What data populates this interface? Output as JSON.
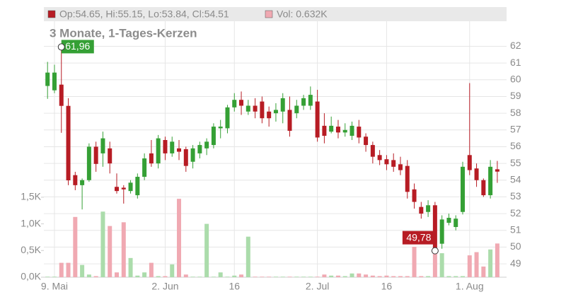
{
  "chart_data": {
    "type": "candlestick",
    "title": "3 Monate, 1-Tages-Kerzen",
    "ohlc_label": "Op:54.65, Hi:55.15, Lo:53.84, Cl:54.51",
    "vol_label": "Vol: 0.632K",
    "categories": [
      null,
      "9. Mai",
      null,
      null,
      null,
      null,
      null,
      null,
      null,
      null,
      null,
      null,
      null,
      null,
      null,
      null,
      null,
      "2. Jun",
      null,
      null,
      null,
      null,
      null,
      null,
      null,
      null,
      null,
      "16",
      null,
      null,
      null,
      null,
      null,
      null,
      null,
      null,
      null,
      null,
      null,
      "2. Jul",
      null,
      null,
      null,
      null,
      null,
      null,
      null,
      null,
      null,
      "16",
      null,
      null,
      null,
      null,
      null,
      null,
      null,
      null,
      null,
      null,
      null,
      "1. Aug",
      null,
      null,
      null,
      null
    ],
    "open": [
      59.63,
      59.37,
      59.71,
      58.44,
      54.3,
      53.7,
      54.0,
      56.0,
      55.6,
      55.9,
      53.6,
      53.55,
      53.35,
      53.1,
      54.2,
      55.6,
      55.0,
      56.4,
      55.6,
      55.9,
      55.85,
      55.1,
      55.6,
      55.9,
      56.1,
      57.1,
      57.1,
      58.35,
      58.8,
      58.1,
      58.45,
      58.7,
      58.1,
      58.0,
      58.1,
      58.2,
      58.0,
      58.45,
      58.45,
      58.7,
      57.25,
      56.9,
      57.2,
      56.85,
      56.65,
      57.2,
      56.6,
      56.1,
      55.5,
      55.25,
      55.2,
      54.95,
      54.85,
      53.45,
      52.4,
      52.1,
      52.5,
      50.2,
      51.45,
      51.2,
      52.1,
      55.5,
      54.7,
      54.0,
      53.1,
      54.65
    ],
    "high": [
      61.07,
      60.9,
      61.96,
      58.9,
      54.5,
      54.1,
      56.2,
      56.3,
      56.9,
      56.3,
      54.4,
      53.7,
      54.0,
      54.4,
      55.6,
      56.4,
      56.7,
      56.6,
      56.6,
      56.4,
      56.0,
      56.1,
      56.3,
      56.5,
      57.4,
      57.6,
      58.5,
      59.2,
      59.3,
      58.8,
      58.9,
      59.0,
      58.4,
      58.6,
      59.2,
      59.0,
      58.8,
      59.1,
      59.6,
      59.4,
      58.0,
      57.8,
      57.6,
      57.4,
      57.5,
      57.6,
      56.8,
      56.3,
      55.8,
      55.5,
      55.6,
      55.4,
      55.2,
      53.8,
      52.7,
      52.8,
      52.7,
      51.9,
      52.0,
      51.9,
      55.1,
      59.8,
      55.0,
      54.1,
      55.2,
      55.15
    ],
    "low": [
      58.86,
      59.2,
      56.83,
      53.7,
      53.4,
      52.25,
      53.9,
      54.5,
      54.8,
      54.4,
      53.2,
      52.6,
      53.2,
      52.9,
      54.0,
      54.8,
      54.7,
      55.2,
      55.4,
      55.2,
      54.5,
      54.7,
      55.3,
      55.5,
      55.9,
      56.5,
      56.8,
      58.1,
      57.9,
      57.9,
      57.7,
      57.4,
      57.2,
      57.5,
      57.4,
      56.6,
      57.7,
      58.2,
      58.2,
      56.3,
      56.2,
      56.8,
      56.5,
      56.6,
      56.4,
      56.2,
      55.7,
      55.0,
      54.9,
      54.6,
      54.5,
      54.3,
      52.9,
      52.3,
      51.7,
      51.8,
      49.78,
      49.9,
      51.3,
      51.0,
      51.95,
      54.3,
      53.6,
      53.0,
      52.9,
      53.84
    ],
    "close": [
      60.43,
      60.43,
      58.44,
      53.99,
      53.7,
      54.0,
      56.0,
      54.97,
      56.5,
      55.0,
      53.35,
      53.45,
      53.85,
      54.2,
      55.3,
      55.0,
      56.5,
      55.6,
      56.3,
      55.7,
      54.85,
      55.9,
      56.1,
      56.3,
      57.2,
      57.2,
      58.35,
      58.8,
      58.45,
      58.45,
      58.1,
      57.7,
      57.7,
      58.2,
      58.9,
      56.95,
      58.45,
      58.9,
      59.1,
      56.55,
      56.65,
      57.25,
      56.85,
      57.0,
      57.25,
      56.55,
      56.1,
      55.4,
      55.2,
      54.95,
      54.8,
      54.6,
      53.3,
      52.7,
      52.0,
      52.5,
      49.95,
      51.65,
      51.75,
      51.7,
      54.8,
      54.6,
      54.0,
      53.1,
      54.8,
      54.51
    ],
    "volume": [
      0.01,
      0.01,
      0.27,
      0.27,
      1.13,
      0.23,
      0.05,
      0.02,
      1.23,
      0.96,
      0.09,
      1.03,
      0.36,
      0.03,
      0.09,
      0.27,
      0.02,
      0.02,
      0.24,
      1.47,
      0.05,
      0.01,
      0.01,
      1.0,
      0.01,
      0.09,
      0.01,
      0.03,
      0.05,
      0.76,
      0.01,
      0.01,
      0.01,
      0.01,
      0.01,
      0.01,
      0.01,
      0.01,
      0.01,
      0.01,
      0.05,
      0.03,
      0.03,
      0.02,
      0.07,
      0.07,
      0.05,
      0.03,
      0.02,
      0.03,
      0.02,
      0.02,
      0.02,
      0.57,
      0.02,
      0.02,
      0.52,
      0.45,
      0.02,
      0.02,
      0.02,
      0.41,
      0.47,
      0.2,
      0.52,
      0.632
    ],
    "up_color": "#35a035",
    "down_color": "#b71c24",
    "up_volume_color": "#abdcab",
    "down_volume_color": "#f0a9b2",
    "ylim": [
      48.2,
      63.5
    ],
    "yticks": [
      49,
      50,
      51,
      52,
      53,
      54,
      55,
      56,
      57,
      58,
      59,
      60,
      61,
      62
    ],
    "y2lim": [
      0,
      4.8
    ],
    "y2ticks": [
      {
        "value": 0,
        "label": "0,0K"
      },
      {
        "value": 0.5,
        "label": "0,5K"
      },
      {
        "value": 1,
        "label": "1,0K"
      },
      {
        "value": 1.5,
        "label": "1,5K"
      }
    ],
    "annotations": [
      {
        "index": 2,
        "field": "high",
        "text": "61,96"
      },
      {
        "index": 56,
        "field": "low",
        "text": "49,78"
      }
    ],
    "grid": true
  }
}
